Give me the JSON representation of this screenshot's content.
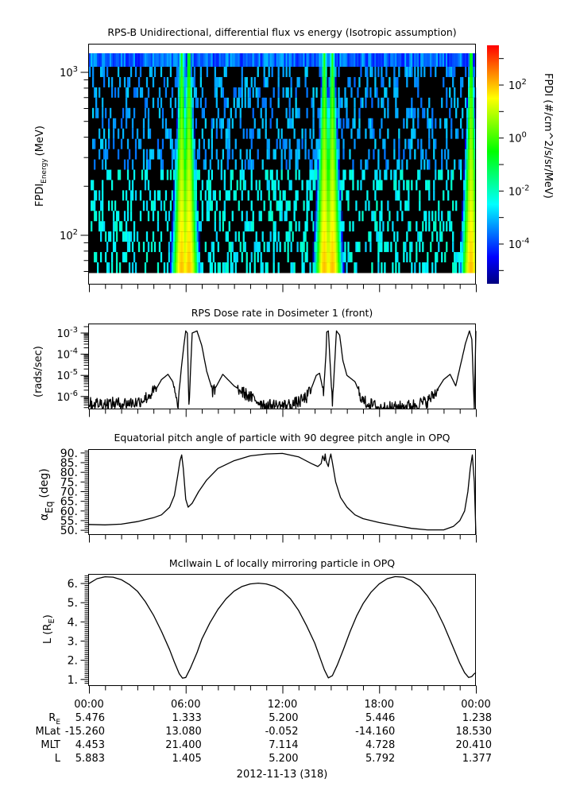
{
  "chart_data": [
    {
      "id": "flux",
      "type": "heatmap",
      "title": "RPS-B  Unidirectional, differential flux vs energy (Isotropic assumption)",
      "ylabel_main": "FPDI",
      "ylabel_sub": "Energy",
      "ylabel_unit": "(MeV)",
      "yscale": "log",
      "ylim": [
        50,
        1500
      ],
      "ytick_labels": [
        {
          "base": "10",
          "exp": "2",
          "value": 100
        },
        {
          "base": "10",
          "exp": "3",
          "value": 1000
        }
      ],
      "xlim_hours": [
        0,
        24
      ],
      "energy_channels_count": 21,
      "band_centers_hours": [
        5.75,
        6.2,
        14.6,
        15.1,
        23.7
      ],
      "peak_log_flux": 2,
      "background_log_flux": -3.5,
      "colorbar": {
        "label": "FPDI (#/cm^2/s/sr/MeV)",
        "scale": "log",
        "range_exp": [
          -5.5,
          3.5
        ],
        "tick_labels": [
          {
            "base": "10",
            "exp": "2",
            "value": 2
          },
          {
            "base": "10",
            "exp": "0",
            "value": 0
          },
          {
            "base": "10",
            "exp": "-2",
            "value": -2
          },
          {
            "base": "10",
            "exp": "-4",
            "value": -4
          }
        ],
        "colors": [
          "#00007f",
          "#0000ff",
          "#007fff",
          "#00ffff",
          "#00ff7f",
          "#00ff00",
          "#7fff00",
          "#ffff00",
          "#ff7f00",
          "#ff0000"
        ]
      }
    },
    {
      "id": "dose",
      "type": "line",
      "title": "RPS  Dose rate in Dosimeter 1 (front)",
      "ylabel": "(rads/sec)",
      "yscale": "log",
      "ylim_exp": [
        -6.57,
        -2.55
      ],
      "ytick_labels": [
        {
          "base": "10",
          "exp": "-3",
          "value": -3
        },
        {
          "base": "10",
          "exp": "-4",
          "value": -4
        },
        {
          "base": "10",
          "exp": "-5",
          "value": -5
        },
        {
          "base": "10",
          "exp": "-6",
          "value": -6
        }
      ],
      "x_hours": [
        0,
        1,
        2,
        3,
        3.6,
        4.2,
        4.5,
        4.9,
        5.2,
        5.5,
        5.75,
        5.9,
        6.0,
        6.1,
        6.2,
        6.4,
        6.7,
        7.0,
        7.3,
        7.7,
        8.3,
        9,
        10,
        11,
        12,
        12.6,
        13.1,
        13.5,
        13.8,
        14.1,
        14.3,
        14.55,
        14.7,
        14.75,
        14.85,
        15.1,
        15.35,
        15.55,
        15.75,
        16.0,
        16.5,
        17,
        18,
        19,
        20,
        21,
        21.5,
        22.0,
        22.4,
        22.75,
        23.05,
        23.35,
        23.6,
        23.75,
        23.9,
        24
      ],
      "y_log10": [
        -6.3,
        -6.3,
        -6.3,
        -6.25,
        -6.0,
        -5.6,
        -5.2,
        -4.95,
        -5.3,
        -6.5,
        -4.5,
        -3.5,
        -2.9,
        -3.0,
        -6.57,
        -3.0,
        -2.9,
        -3.6,
        -4.8,
        -5.8,
        -4.95,
        -5.5,
        -6.0,
        -6.4,
        -6.4,
        -6.35,
        -6.2,
        -6.0,
        -5.6,
        -5.0,
        -4.9,
        -5.8,
        -4.0,
        -2.95,
        -2.9,
        -6.4,
        -2.9,
        -3.1,
        -4.3,
        -5.0,
        -5.3,
        -6.2,
        -6.5,
        -6.5,
        -6.4,
        -6.2,
        -5.8,
        -5.2,
        -4.95,
        -5.5,
        -4.5,
        -3.5,
        -2.9,
        -3.3,
        -6.57,
        -2.9
      ]
    },
    {
      "id": "pitch",
      "type": "line",
      "title": "Equatorial pitch angle of particle with 90 degree pitch angle in OPQ",
      "ylabel_greek": "α",
      "ylabel_sub": "Eq",
      "ylabel_unit": "(deg)",
      "ylim": [
        48,
        92
      ],
      "ytick_labels": [
        "90.",
        "85.",
        "80.",
        "75.",
        "70.",
        "65.",
        "60.",
        "55.",
        "50."
      ],
      "ytick_values": [
        90,
        85,
        80,
        75,
        70,
        65,
        60,
        55,
        50
      ],
      "x_hours": [
        0,
        1,
        2,
        3,
        4,
        4.5,
        5.0,
        5.3,
        5.5,
        5.65,
        5.75,
        5.85,
        6.0,
        6.15,
        6.4,
        6.8,
        7.3,
        8,
        9,
        10,
        11,
        12,
        13,
        13.8,
        14.2,
        14.4,
        14.5,
        14.6,
        14.65,
        14.7,
        14.8,
        14.85,
        14.9,
        15.0,
        15.1,
        15.3,
        15.6,
        16.0,
        16.5,
        17,
        18,
        19,
        20,
        21,
        22,
        22.6,
        23.0,
        23.3,
        23.5,
        23.65,
        23.78,
        23.9,
        24
      ],
      "y": [
        53,
        52.8,
        53.2,
        54.5,
        56.5,
        58,
        62,
        68,
        78,
        86,
        89,
        82,
        66,
        62,
        64,
        70,
        76,
        82,
        86,
        88.5,
        89.5,
        89.8,
        88,
        84.5,
        83,
        84.5,
        88.5,
        86,
        89.5,
        86,
        84,
        83,
        86,
        89.5,
        85,
        75,
        67,
        62,
        58,
        56,
        54,
        52.5,
        51,
        50.2,
        50.2,
        52,
        55,
        60,
        70,
        82,
        89,
        75,
        48
      ]
    },
    {
      "id": "lshell",
      "type": "line",
      "title": "McIlwain L of locally mirroring particle in OPQ",
      "ylabel_main": "L (R",
      "ylabel_sub": "E",
      "ylabel_close": ")",
      "ylim": [
        0.7,
        6.5
      ],
      "ytick_labels": [
        "6.",
        "5.",
        "4.",
        "3.",
        "2.",
        "1."
      ],
      "ytick_values": [
        6,
        5,
        4,
        3,
        2,
        1
      ],
      "x_hours": [
        0,
        0.5,
        1,
        1.5,
        2,
        2.5,
        3,
        3.5,
        4,
        4.5,
        5,
        5.3,
        5.6,
        5.8,
        6.0,
        6.3,
        6.7,
        7,
        7.5,
        8,
        8.5,
        9,
        9.5,
        10,
        10.5,
        11,
        11.5,
        12,
        12.5,
        13,
        13.5,
        14,
        14.3,
        14.6,
        14.85,
        15.1,
        15.4,
        15.8,
        16.2,
        16.6,
        17,
        17.5,
        18,
        18.5,
        19,
        19.5,
        20,
        20.5,
        21,
        21.5,
        22,
        22.5,
        23,
        23.3,
        23.55,
        23.75,
        23.9,
        24
      ],
      "y": [
        6.0,
        6.25,
        6.35,
        6.33,
        6.2,
        5.95,
        5.6,
        5.05,
        4.35,
        3.5,
        2.55,
        1.9,
        1.3,
        1.07,
        1.1,
        1.6,
        2.4,
        3.1,
        3.95,
        4.65,
        5.2,
        5.6,
        5.85,
        5.98,
        6.02,
        5.98,
        5.85,
        5.6,
        5.2,
        4.6,
        3.8,
        2.9,
        2.2,
        1.5,
        1.08,
        1.2,
        1.75,
        2.6,
        3.5,
        4.3,
        4.95,
        5.55,
        5.98,
        6.25,
        6.36,
        6.33,
        6.15,
        5.85,
        5.35,
        4.7,
        3.85,
        2.85,
        1.85,
        1.35,
        1.1,
        1.15,
        1.3,
        1.35
      ]
    }
  ],
  "x_axis": {
    "tick_labels": [
      "00:00",
      "06:00",
      "12:00",
      "18:00",
      "00:00"
    ],
    "tick_hours": [
      0,
      6,
      12,
      18,
      24
    ],
    "date_label": "2012-11-13 (318)"
  },
  "ephemeris": {
    "rows": [
      {
        "label": "R",
        "label_sub": "E",
        "values": [
          "5.476",
          "1.333",
          "5.200",
          "5.446",
          "1.238"
        ]
      },
      {
        "label": "MLat",
        "label_sub": "",
        "values": [
          "-15.260",
          "13.080",
          "-0.052",
          "-14.160",
          "18.530"
        ]
      },
      {
        "label": "MLT",
        "label_sub": "",
        "values": [
          "4.453",
          "21.400",
          "7.114",
          "4.728",
          "20.410"
        ]
      },
      {
        "label": "L",
        "label_sub": "",
        "values": [
          "5.883",
          "1.405",
          "5.200",
          "5.792",
          "1.377"
        ]
      }
    ]
  }
}
